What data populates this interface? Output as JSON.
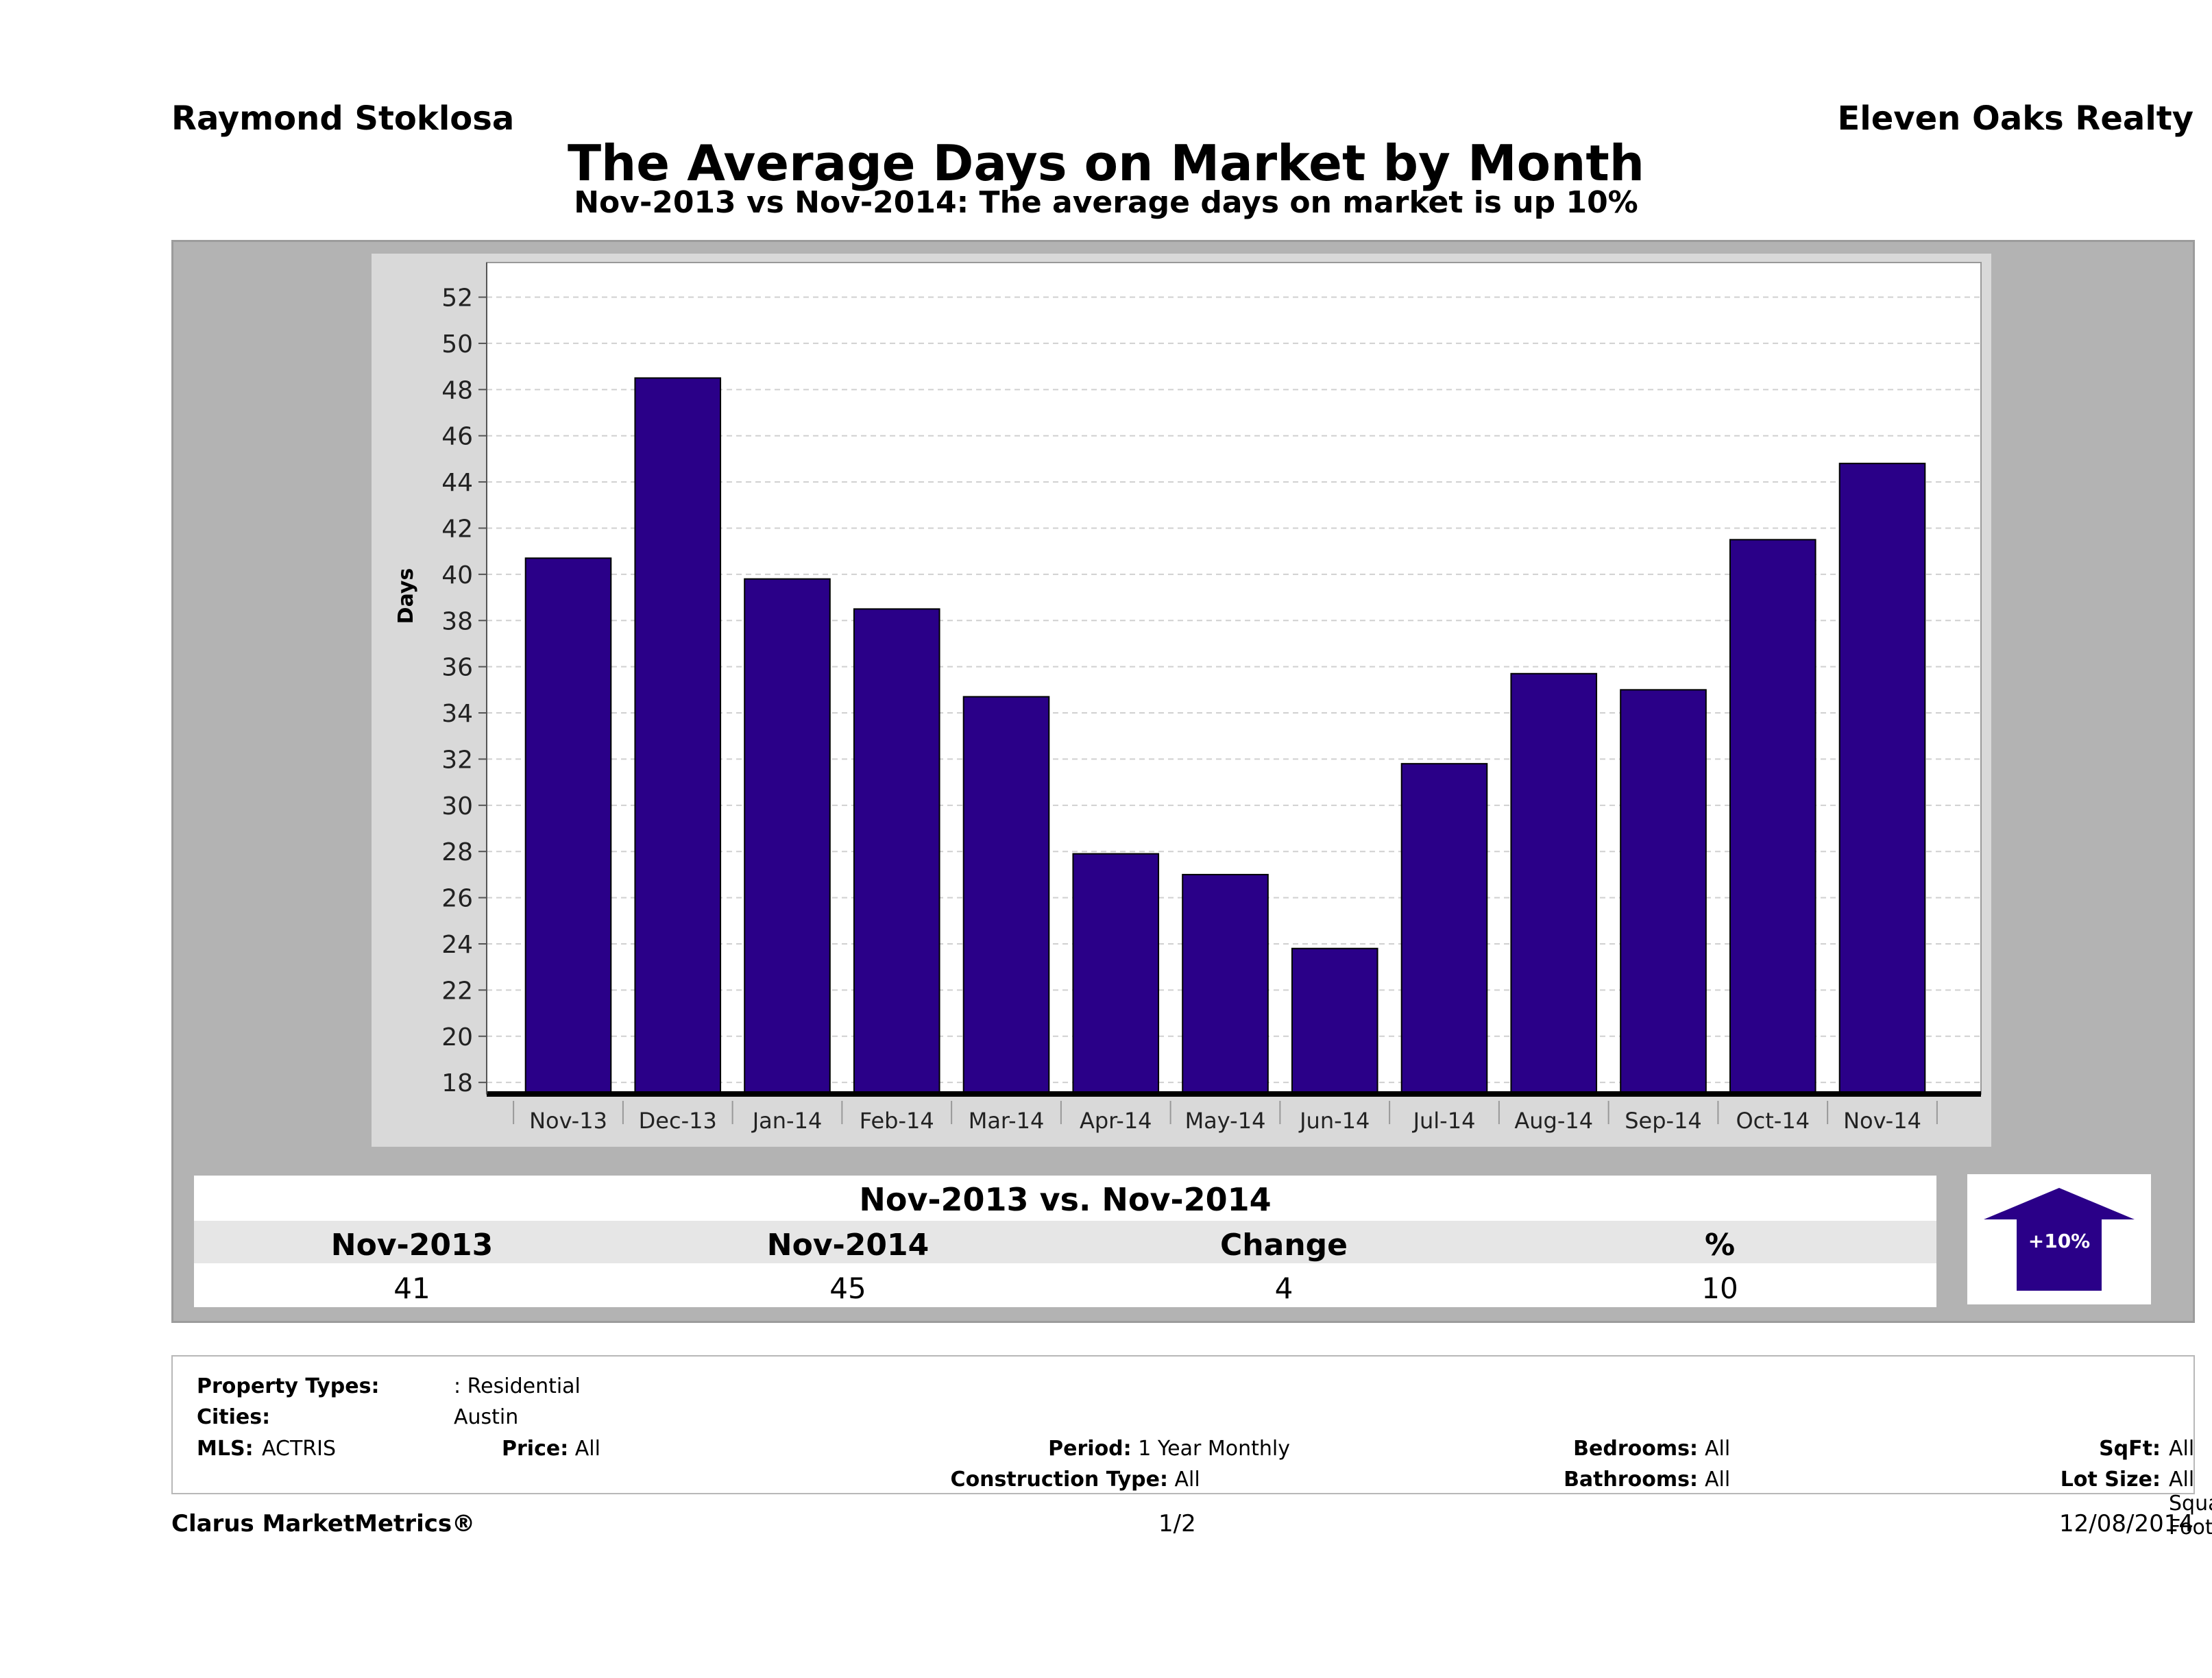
{
  "header": {
    "agent": "Raymond Stoklosa",
    "company": "Eleven Oaks Realty",
    "title": "The Average Days on Market by Month",
    "subtitle": "Nov-2013 vs Nov-2014: The average days on market is up 10%"
  },
  "chart_data": {
    "type": "bar",
    "categories": [
      "Nov-13",
      "Dec-13",
      "Jan-14",
      "Feb-14",
      "Mar-14",
      "Apr-14",
      "May-14",
      "Jun-14",
      "Jul-14",
      "Aug-14",
      "Sep-14",
      "Oct-14",
      "Nov-14"
    ],
    "values": [
      40.7,
      48.5,
      39.8,
      38.5,
      34.7,
      27.9,
      27.0,
      23.8,
      31.8,
      35.7,
      35.0,
      41.5,
      44.8
    ],
    "ylabel": "Days",
    "xlabel": "",
    "ylim": [
      17.5,
      53.5
    ],
    "yticks": [
      18,
      20,
      22,
      24,
      26,
      28,
      30,
      32,
      34,
      36,
      38,
      40,
      42,
      44,
      46,
      48,
      50,
      52
    ],
    "grid": true,
    "bar_color": "#2a0088"
  },
  "comparison": {
    "title": "Nov-2013 vs. Nov-2014",
    "headers": [
      "Nov-2013",
      "Nov-2014",
      "Change",
      "%"
    ],
    "values": [
      "41",
      "45",
      "4",
      "10"
    ],
    "badge": "+10%",
    "arrow_color": "#2a0088"
  },
  "filters": {
    "property_types_label": "Property Types:",
    "property_types_value": ": Residential",
    "cities_label": "Cities:",
    "cities_value": "Austin",
    "mls_label": "MLS:",
    "mls_value": "ACTRIS",
    "price_label": "Price:",
    "price_value": "All",
    "period_label": "Period:",
    "period_value": "1 Year Monthly",
    "construction_label": "Construction Type:",
    "construction_value": "All",
    "bedrooms_label": "Bedrooms:",
    "bedrooms_value": "All",
    "bathrooms_label": "Bathrooms:",
    "bathrooms_value": "All",
    "sqft_label": "SqFt:",
    "sqft_value": "All",
    "lot_label": "Lot Size:",
    "lot_value": "All Square Footage"
  },
  "footer": {
    "brand": "Clarus MarketMetrics®",
    "page": "1/2",
    "date": "12/08/2014"
  }
}
